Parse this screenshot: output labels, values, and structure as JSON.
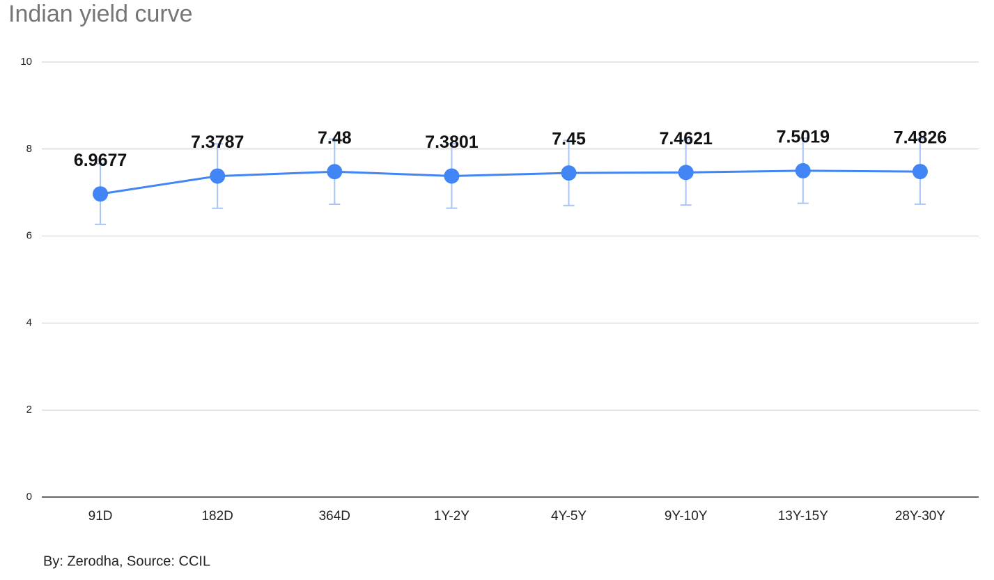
{
  "chart_data": {
    "type": "line",
    "title": "Indian yield curve",
    "footnote": "By: Zerodha, Source: CCIL",
    "categories": [
      "91D",
      "182D",
      "364D",
      "1Y-2Y",
      "4Y-5Y",
      "9Y-10Y",
      "13Y-15Y",
      "28Y-30Y"
    ],
    "series": [
      {
        "name": "Yield",
        "color": "#4285f4",
        "values": [
          6.9677,
          7.3787,
          7.48,
          7.3801,
          7.45,
          7.4621,
          7.5019,
          7.4826
        ],
        "errors": [
          0.7,
          0.74,
          0.75,
          0.74,
          0.75,
          0.75,
          0.75,
          0.75
        ]
      }
    ],
    "error_color": "#a9c4f5",
    "ylim": [
      0,
      10
    ],
    "yticks": [
      0,
      2,
      4,
      6,
      8,
      10
    ],
    "grid": true
  }
}
